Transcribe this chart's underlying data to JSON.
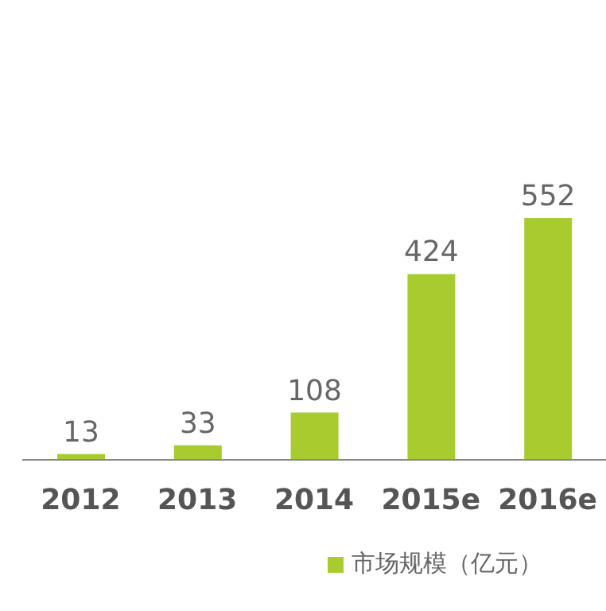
{
  "chart_data": {
    "type": "bar",
    "categories": [
      "2012",
      "2013",
      "2014",
      "2015e",
      "2016e"
    ],
    "series": [
      {
        "name": "市场规模（亿元）",
        "color": "#a8cb30",
        "values": [
          13,
          33,
          108,
          424,
          552
        ]
      }
    ],
    "data_labels": true,
    "legend": "bottom",
    "grid": false
  }
}
